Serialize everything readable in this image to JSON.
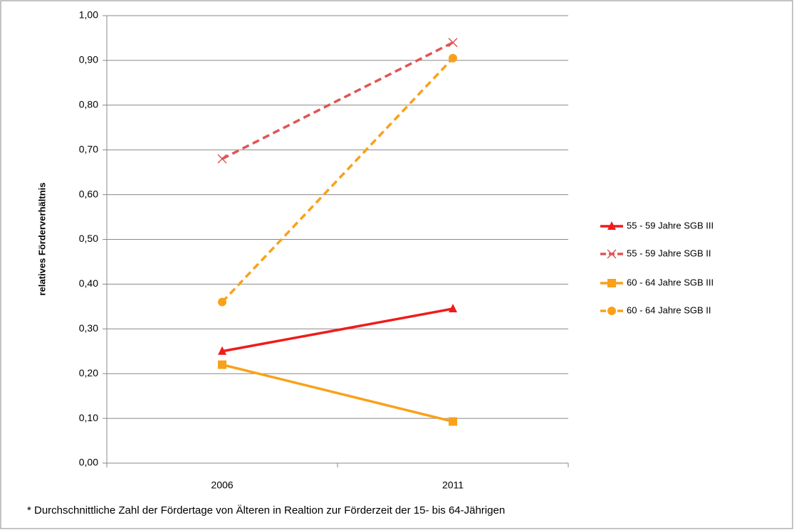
{
  "chart_data": {
    "type": "line",
    "y_label": "relatives Förderverhältnis",
    "footnote": "* Durchschnittliche Zahl der Fördertage von Älteren in Realtion zur Förderzeit der 15- bis 64-Jährigen",
    "categories": [
      "2006",
      "2011"
    ],
    "series": [
      {
        "name": "55 - 59 Jahre SGB III",
        "color": "#ee1c1c",
        "dash": false,
        "marker": "triangle",
        "values": [
          0.25,
          0.345
        ]
      },
      {
        "name": "55 - 59 Jahre SGB II",
        "color": "#e05555",
        "dash": true,
        "marker": "x",
        "values": [
          0.68,
          0.94
        ]
      },
      {
        "name": "60 - 64 Jahre SGB III",
        "color": "#f9a11b",
        "dash": false,
        "marker": "square",
        "values": [
          0.22,
          0.093
        ]
      },
      {
        "name": "60 - 64 Jahre SGB II",
        "color": "#f9a11b",
        "dash": true,
        "marker": "circle",
        "values": [
          0.36,
          0.905
        ]
      }
    ],
    "ylim": [
      0,
      1
    ],
    "yticks": [
      {
        "value": 0,
        "label": "0,00"
      },
      {
        "value": 0.1,
        "label": "0,10"
      },
      {
        "value": 0.2,
        "label": "0,20"
      },
      {
        "value": 0.3,
        "label": "0,30"
      },
      {
        "value": 0.4,
        "label": "0,40"
      },
      {
        "value": 0.5,
        "label": "0,50"
      },
      {
        "value": 0.6,
        "label": "0,60"
      },
      {
        "value": 0.7,
        "label": "0,70"
      },
      {
        "value": 0.8,
        "label": "0,80"
      },
      {
        "value": 0.9,
        "label": "0,90"
      },
      {
        "value": 1,
        "label": "1,00"
      }
    ],
    "grid": true,
    "legend": "right"
  }
}
